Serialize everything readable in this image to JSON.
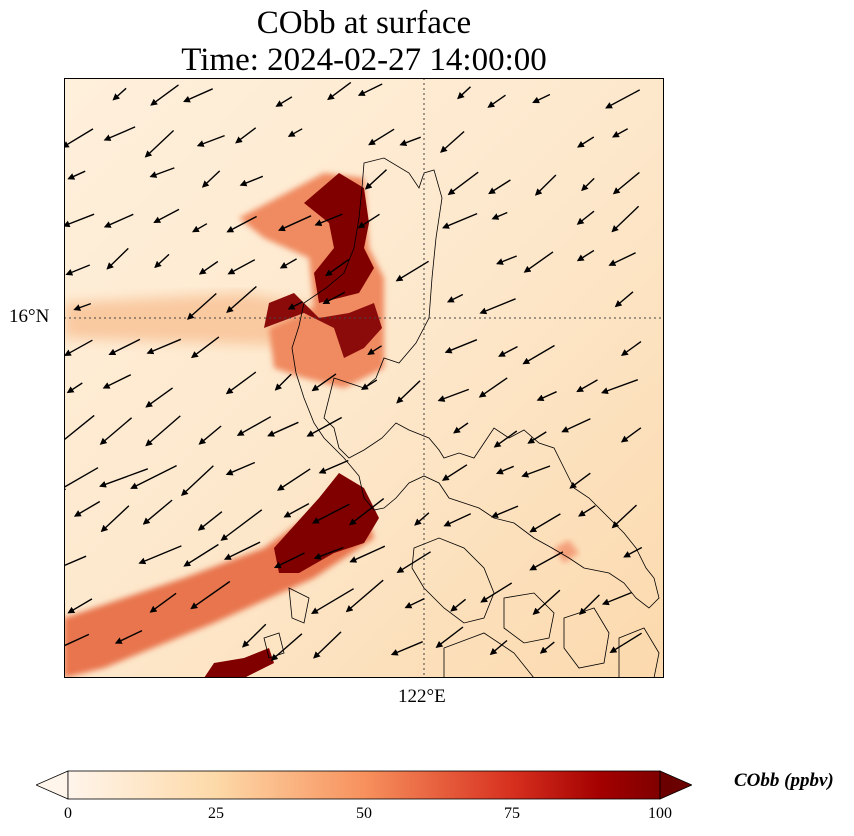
{
  "title": {
    "line1": "CObb at surface",
    "line2": "Time: 2024-02-27 14:00:00"
  },
  "map": {
    "lat_tick": "16°N",
    "lon_tick": "122°E",
    "gridlines": "dotted"
  },
  "colorbar": {
    "label": "CObb (ppbv)",
    "ticks": [
      "0",
      "25",
      "50",
      "75",
      "100"
    ],
    "range": [
      0,
      100
    ],
    "extend": "both",
    "colormap": [
      "#fff5eb",
      "#fdd9a8",
      "#f7915d",
      "#d7301f",
      "#8b0000",
      "#6b0000"
    ]
  },
  "colors": {
    "background_field": "#fde6c8",
    "plume_high": "#800000",
    "plume_mid": "#e2553a",
    "coastline": "#000000"
  }
}
